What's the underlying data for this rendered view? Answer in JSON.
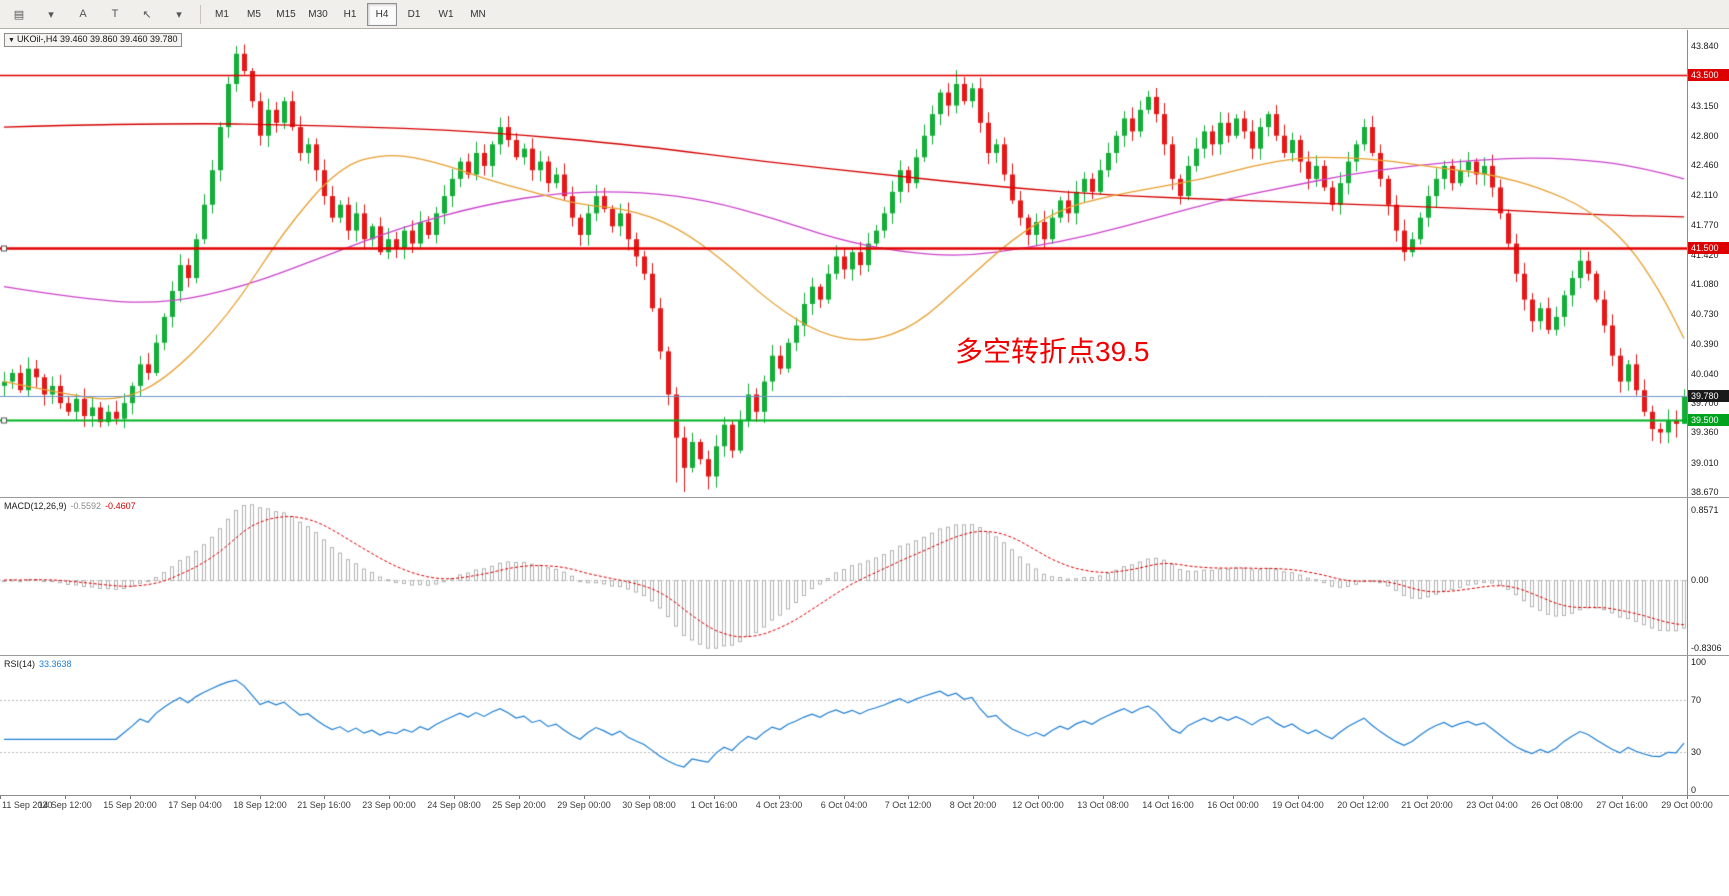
{
  "toolbar": {
    "icon_buttons": [
      {
        "name": "chart-window-icon",
        "glyph": "▤"
      },
      {
        "name": "dropdown-caret-icon",
        "glyph": "▾"
      },
      {
        "name": "arrow-object-button",
        "glyph": "A"
      },
      {
        "name": "text-object-button",
        "glyph": "T"
      },
      {
        "name": "cursor-tool-icon",
        "glyph": "↖"
      },
      {
        "name": "dropdown-caret-icon-2",
        "glyph": "▾"
      }
    ],
    "timeframes": [
      {
        "label": "M1",
        "active": false
      },
      {
        "label": "M5",
        "active": false
      },
      {
        "label": "M15",
        "active": false
      },
      {
        "label": "M30",
        "active": false
      },
      {
        "label": "H1",
        "active": false
      },
      {
        "label": "H4",
        "active": true
      },
      {
        "label": "D1",
        "active": false
      },
      {
        "label": "W1",
        "active": false
      },
      {
        "label": "MN",
        "active": false
      }
    ]
  },
  "chart": {
    "symbol_info": "UKOil-,H4 39.460 39.860 39.460 39.780",
    "annotation": {
      "text": "多空转折点39.5",
      "color": "#f00000"
    },
    "price_axis": {
      "ticks": [
        "43.840",
        "43.150",
        "42.800",
        "42.460",
        "42.110",
        "41.770",
        "41.420",
        "41.080",
        "40.730",
        "40.390",
        "40.040",
        "39.700",
        "39.360",
        "39.010",
        "38.670"
      ],
      "line_labels": [
        {
          "label": "43.500",
          "bg": "#dd0000",
          "color": "#ffffff"
        },
        {
          "label": "41.500",
          "bg": "#dd0000",
          "color": "#ffffff"
        },
        {
          "label": "39.780",
          "bg": "#1a1a1a",
          "color": "#ffffff"
        },
        {
          "label": "39.500",
          "bg": "#00a21e",
          "color": "#ffffff"
        }
      ]
    },
    "hlines": [
      {
        "value": 43.5,
        "color": "#e00000",
        "width": 1.6,
        "handle": false
      },
      {
        "value": 41.5,
        "color": "#e00000",
        "width": 2.4,
        "handle": true
      },
      {
        "value": 39.5,
        "color": "#00b122",
        "width": 2.0,
        "handle": true
      }
    ],
    "bid_line": {
      "value": 39.78,
      "color": "#6b96c8"
    }
  },
  "macd": {
    "label": "MACD(12,26,9)",
    "value_main": "-0.5592",
    "value_signal": "-0.4607",
    "axis": [
      "0.8571",
      "0.00",
      "-0.8306"
    ],
    "histogram_color": "#b4b4b4",
    "signal_color": "#e00000"
  },
  "rsi": {
    "label": "RSI(14)",
    "value": "33.3638",
    "axis": [
      "100",
      "70",
      "30",
      "0"
    ],
    "levels": [
      70,
      30
    ],
    "line_color": "#1f7fd4"
  },
  "time_axis": {
    "labels": [
      "11 Sep 2020",
      "14 Sep 12:00",
      "15 Sep 20:00",
      "17 Sep 04:00",
      "18 Sep 12:00",
      "21 Sep 16:00",
      "23 Sep 00:00",
      "24 Sep 08:00",
      "25 Sep 20:00",
      "29 Sep 00:00",
      "30 Sep 08:00",
      "1 Oct 16:00",
      "4 Oct 23:00",
      "6 Oct 04:00",
      "7 Oct 12:00",
      "8 Oct 20:00",
      "12 Oct 00:00",
      "13 Oct 08:00",
      "14 Oct 16:00",
      "16 Oct 00:00",
      "19 Oct 04:00",
      "20 Oct 12:00",
      "21 Oct 20:00",
      "23 Oct 04:00",
      "26 Oct 08:00",
      "27 Oct 16:00",
      "29 Oct 00:00"
    ]
  },
  "chart_data": {
    "type": "candlestick",
    "symbol": "UKOil-",
    "timeframe": "H4",
    "price_range": [
      38.61,
      44.03
    ],
    "ohlc_current": {
      "open": 39.46,
      "high": 39.86,
      "low": 39.46,
      "close": 39.78
    },
    "closes": [
      39.95,
      40.05,
      39.85,
      40.1,
      40.0,
      39.8,
      39.9,
      39.7,
      39.6,
      39.75,
      39.55,
      39.65,
      39.48,
      39.6,
      39.52,
      39.7,
      39.9,
      40.15,
      40.05,
      40.4,
      40.7,
      41.0,
      41.3,
      41.15,
      41.6,
      42.0,
      42.4,
      42.9,
      43.4,
      43.75,
      43.55,
      43.2,
      42.8,
      43.1,
      42.95,
      43.2,
      42.9,
      42.6,
      42.7,
      42.4,
      42.1,
      41.85,
      42.0,
      41.7,
      41.9,
      41.6,
      41.75,
      41.45,
      41.6,
      41.5,
      41.7,
      41.55,
      41.8,
      41.65,
      41.9,
      42.1,
      42.3,
      42.5,
      42.35,
      42.6,
      42.45,
      42.7,
      42.9,
      42.75,
      42.55,
      42.65,
      42.4,
      42.5,
      42.25,
      42.35,
      42.1,
      41.85,
      41.65,
      41.9,
      42.1,
      41.95,
      41.75,
      41.9,
      41.6,
      41.4,
      41.2,
      40.8,
      40.3,
      39.8,
      39.3,
      38.95,
      39.25,
      39.05,
      38.85,
      39.2,
      39.45,
      39.15,
      39.5,
      39.8,
      39.6,
      39.95,
      40.25,
      40.1,
      40.4,
      40.6,
      40.85,
      41.05,
      40.9,
      41.2,
      41.4,
      41.25,
      41.45,
      41.3,
      41.55,
      41.7,
      41.9,
      42.15,
      42.4,
      42.25,
      42.55,
      42.8,
      43.05,
      43.3,
      43.15,
      43.4,
      43.2,
      43.35,
      42.95,
      42.6,
      42.7,
      42.35,
      42.05,
      41.85,
      41.65,
      41.8,
      41.6,
      41.85,
      42.05,
      41.9,
      42.15,
      42.3,
      42.15,
      42.4,
      42.6,
      42.8,
      43.0,
      42.85,
      43.1,
      43.25,
      43.05,
      42.7,
      42.3,
      42.1,
      42.45,
      42.65,
      42.85,
      42.7,
      42.95,
      42.8,
      43.0,
      42.85,
      42.65,
      42.9,
      43.05,
      42.8,
      42.6,
      42.75,
      42.5,
      42.3,
      42.45,
      42.2,
      42.0,
      42.25,
      42.5,
      42.7,
      42.9,
      42.6,
      42.3,
      42.0,
      41.7,
      41.45,
      41.6,
      41.85,
      42.1,
      42.3,
      42.45,
      42.25,
      42.4,
      42.5,
      42.35,
      42.45,
      42.2,
      41.9,
      41.55,
      41.2,
      40.9,
      40.65,
      40.8,
      40.55,
      40.7,
      40.95,
      41.15,
      41.35,
      41.2,
      40.9,
      40.6,
      40.25,
      39.95,
      40.15,
      39.85,
      39.6,
      39.4,
      39.36,
      39.5,
      39.46,
      39.78
    ],
    "high_overrides": {
      "29": 43.84,
      "119": 43.56,
      "143": 43.32,
      "210": 39.86
    },
    "low_overrides": {
      "12": 39.42,
      "84": 38.78,
      "85": 38.67,
      "88": 38.7,
      "206": 39.26,
      "209": 39.3,
      "210": 39.46
    },
    "up_color": "#12ae38",
    "down_color": "#e51717",
    "ma_lines": [
      {
        "name": "slow-ma",
        "color": "#d40000",
        "points": [
          [
            0,
            42.9
          ],
          [
            20,
            42.95
          ],
          [
            40,
            42.92
          ],
          [
            60,
            42.85
          ],
          [
            80,
            42.68
          ],
          [
            95,
            42.5
          ],
          [
            110,
            42.35
          ],
          [
            125,
            42.2
          ],
          [
            140,
            42.1
          ],
          [
            155,
            42.05
          ],
          [
            170,
            42.0
          ],
          [
            185,
            41.95
          ],
          [
            200,
            41.88
          ],
          [
            210,
            41.86
          ]
        ]
      },
      {
        "name": "medium-ma",
        "color": "#cc44cc",
        "points": [
          [
            0,
            41.05
          ],
          [
            10,
            40.9
          ],
          [
            20,
            40.85
          ],
          [
            30,
            41.05
          ],
          [
            40,
            41.4
          ],
          [
            50,
            41.75
          ],
          [
            60,
            42.0
          ],
          [
            70,
            42.15
          ],
          [
            80,
            42.15
          ],
          [
            88,
            42.05
          ],
          [
            96,
            41.85
          ],
          [
            104,
            41.6
          ],
          [
            112,
            41.45
          ],
          [
            120,
            41.4
          ],
          [
            128,
            41.5
          ],
          [
            136,
            41.65
          ],
          [
            144,
            41.85
          ],
          [
            152,
            42.05
          ],
          [
            160,
            42.2
          ],
          [
            168,
            42.35
          ],
          [
            176,
            42.45
          ],
          [
            184,
            42.52
          ],
          [
            192,
            42.55
          ],
          [
            200,
            42.5
          ],
          [
            205,
            42.42
          ],
          [
            210,
            42.3
          ]
        ]
      },
      {
        "name": "fast-ma",
        "color": "#e8a030",
        "points": [
          [
            0,
            39.95
          ],
          [
            8,
            39.8
          ],
          [
            14,
            39.72
          ],
          [
            20,
            39.95
          ],
          [
            28,
            40.7
          ],
          [
            35,
            41.7
          ],
          [
            42,
            42.45
          ],
          [
            48,
            42.6
          ],
          [
            54,
            42.5
          ],
          [
            60,
            42.3
          ],
          [
            66,
            42.15
          ],
          [
            72,
            42.0
          ],
          [
            78,
            41.95
          ],
          [
            84,
            41.75
          ],
          [
            90,
            41.35
          ],
          [
            96,
            40.85
          ],
          [
            102,
            40.5
          ],
          [
            108,
            40.4
          ],
          [
            114,
            40.6
          ],
          [
            120,
            41.1
          ],
          [
            126,
            41.6
          ],
          [
            132,
            41.95
          ],
          [
            138,
            42.1
          ],
          [
            144,
            42.2
          ],
          [
            150,
            42.3
          ],
          [
            156,
            42.45
          ],
          [
            162,
            42.55
          ],
          [
            168,
            42.55
          ],
          [
            174,
            42.5
          ],
          [
            180,
            42.42
          ],
          [
            186,
            42.35
          ],
          [
            192,
            42.2
          ],
          [
            198,
            41.95
          ],
          [
            203,
            41.55
          ],
          [
            207,
            41.0
          ],
          [
            210,
            40.45
          ]
        ]
      }
    ]
  }
}
